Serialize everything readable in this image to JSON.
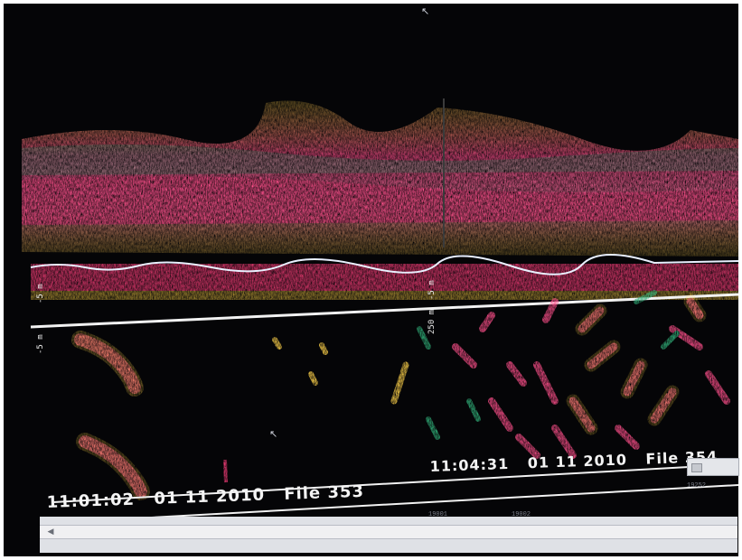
{
  "echogram": {
    "upper_panel": {
      "depth_label_a": "-5 m",
      "depth_label_b": "-5 m"
    },
    "lower_panel": {
      "depth_label_a": "-5 m",
      "depth_label_b": "250 m"
    }
  },
  "timestamps": {
    "left": {
      "time": "11:01:02",
      "date": "01 11 2010",
      "file": "File 353"
    },
    "right": {
      "time": "11:04:31",
      "date": "01 11 2010",
      "file": "File 354"
    }
  },
  "scrollbar": {
    "ping_labels": [
      "19001",
      "19002",
      "19252"
    ]
  },
  "colors": {
    "background": "#050507",
    "strong_echo": "#ff4f8b",
    "medium_echo": "#ffd24a",
    "weak_echo": "#2fae78",
    "bottom_line": "#e9f0ff"
  },
  "icons": {
    "cursor_top": "arrow-cursor-icon",
    "cursor_mid": "arrow-cursor-icon",
    "scroll_left": "scroll-left-arrow-icon"
  }
}
